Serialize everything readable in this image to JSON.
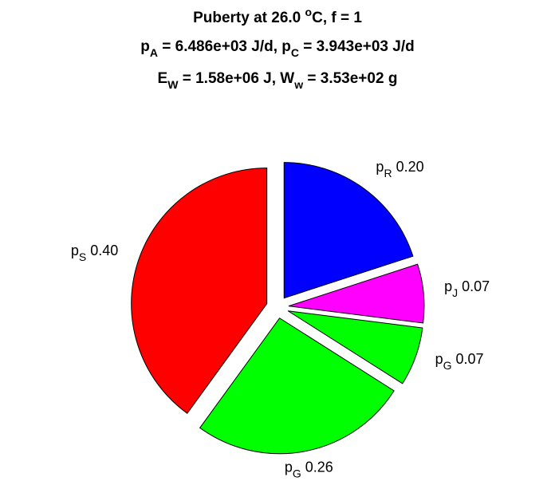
{
  "chart_data": {
    "type": "pie",
    "title": [
      [
        "Puberty at 26.0 ",
        {
          "sup": "o"
        },
        "C, f = 1"
      ],
      [
        "p",
        {
          "sub": "A"
        },
        " = 6.486e+03 J/d,  p",
        {
          "sub": "C"
        },
        " = 3.943e+03 J/d"
      ],
      [
        "E",
        {
          "sub": "W"
        },
        " = 1.58e+06 J, W",
        {
          "sub": "w"
        },
        " = 3.53e+02 g"
      ]
    ],
    "categories": [
      {
        "base": "p",
        "sub": "R"
      },
      {
        "base": "p",
        "sub": "J"
      },
      {
        "base": "p",
        "sub": "G"
      },
      {
        "base": "p",
        "sub": "G"
      },
      {
        "base": "p",
        "sub": "S"
      }
    ],
    "values": [
      0.2,
      0.07,
      0.07,
      0.26,
      0.4
    ],
    "value_labels": [
      "0.20",
      "0.07",
      "0.07",
      "0.26",
      "0.40"
    ],
    "colors": [
      "#0000ff",
      "#ff00ff",
      "#00ff00",
      "#00ff00",
      "#ff0000"
    ]
  }
}
